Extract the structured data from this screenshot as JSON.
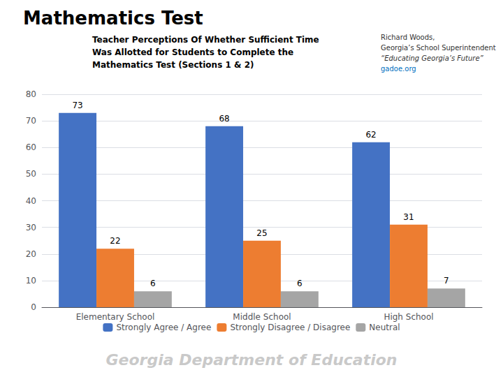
{
  "chart_data": {
    "type": "bar",
    "title": "Mathematics Test",
    "subtitle": "Teacher Perceptions Of Whether Sufficient Time\nWas Allotted for Students to Complete the\nMathematics Test (Sections 1 & 2)",
    "annotations": [
      "Richard Woods,",
      "Georgia’s School Superintendent",
      "“Educating Georgia’s Future”",
      "gadoe.org",
      "Georgia Department of Education"
    ],
    "categories": [
      "Elementary School",
      "Middle School",
      "High School"
    ],
    "series": [
      {
        "name": "Strongly Agree / Agree",
        "color": "#4472C4",
        "values": [
          73,
          68,
          62
        ]
      },
      {
        "name": "Strongly Disagree / Disagree",
        "color": "#ED7D31",
        "values": [
          22,
          25,
          31
        ]
      },
      {
        "name": "Neutral",
        "color": "#A5A5A5",
        "values": [
          6,
          6,
          7
        ]
      }
    ],
    "ylim": [
      0,
      80
    ],
    "yticks": [
      0,
      10,
      20,
      30,
      40,
      50,
      60,
      70,
      80
    ],
    "grid": true,
    "data_labels": true,
    "legend": "bottom"
  }
}
